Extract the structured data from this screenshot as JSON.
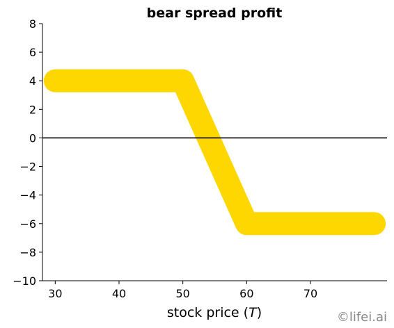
{
  "chart_data": {
    "type": "line",
    "title": "bear spread profit",
    "xlabel_main": "stock price (",
    "xlabel_var": "T",
    "xlabel_close": ")",
    "ylabel": "",
    "xlim": [
      28,
      82
    ],
    "ylim": [
      -10,
      8
    ],
    "xticks": [
      30,
      40,
      50,
      60,
      70
    ],
    "yticks": [
      -10,
      -8,
      -6,
      -4,
      -2,
      0,
      2,
      4,
      6,
      8
    ],
    "ytick_labels": [
      "−10",
      "−8",
      "−6",
      "−4",
      "−2",
      "0",
      "2",
      "4",
      "6",
      "8"
    ],
    "hline": 0,
    "grid": false,
    "series": [
      {
        "x": [
          30,
          50,
          60,
          80
        ],
        "y": [
          4,
          4,
          -6,
          -6
        ],
        "color": "#FFD700"
      }
    ],
    "hline_color": "#000000"
  },
  "watermark": "©lifei.ai"
}
